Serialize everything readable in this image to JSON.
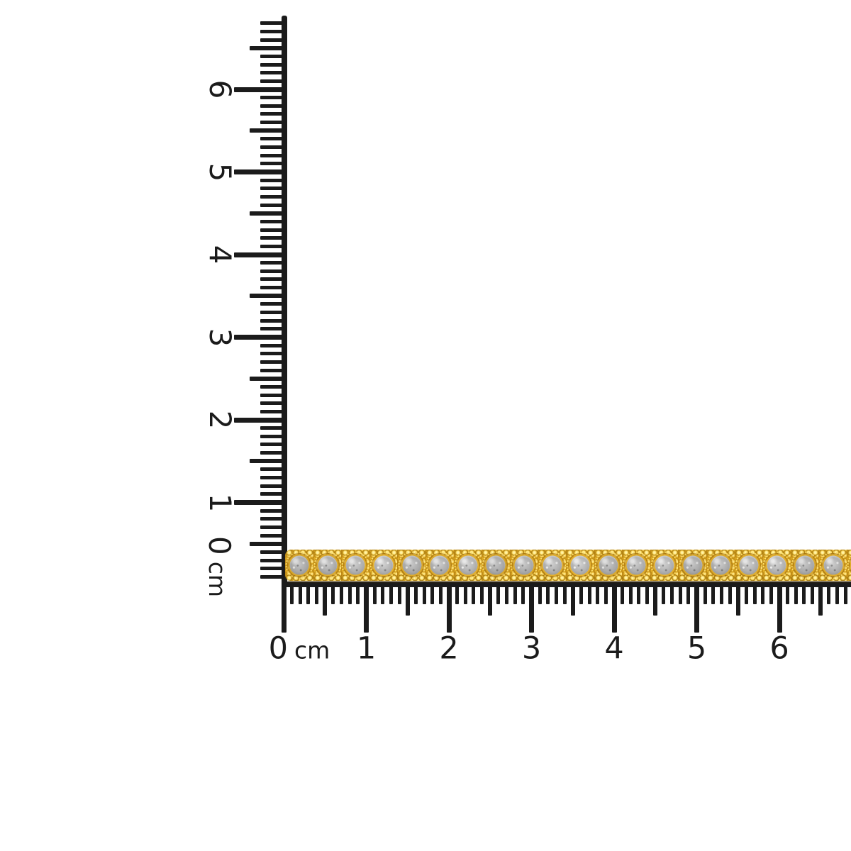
{
  "scene": {
    "description": "Product scale photo: yellow-gold diamond tennis bracelet laid along two centimeter rulers",
    "background_color": "#ffffff",
    "ruler_color": "#1b1b1b"
  },
  "vertical_ruler": {
    "unit_label": "cm",
    "zero_label": "0",
    "numbers": [
      "1",
      "2",
      "3",
      "4",
      "5",
      "6"
    ],
    "orientation": "vertical, ticks pointing left, labels rotated 90deg clockwise"
  },
  "horizontal_ruler": {
    "unit_label": "cm",
    "zero_label": "0",
    "numbers": [
      "1",
      "2",
      "3",
      "4",
      "5",
      "6"
    ],
    "orientation": "horizontal, ticks pointing down, labels below"
  },
  "bracelet": {
    "kind": "gold-diamond-tennis-bracelet",
    "stone_count": 21,
    "gold_color": "#E2AC22",
    "gold_highlight": "#FFDD64",
    "gold_shadow": "#B9881A",
    "stone_color": "#ACACAC",
    "measured_length_cm": "extends past 6 cm (runs off right edge)"
  }
}
